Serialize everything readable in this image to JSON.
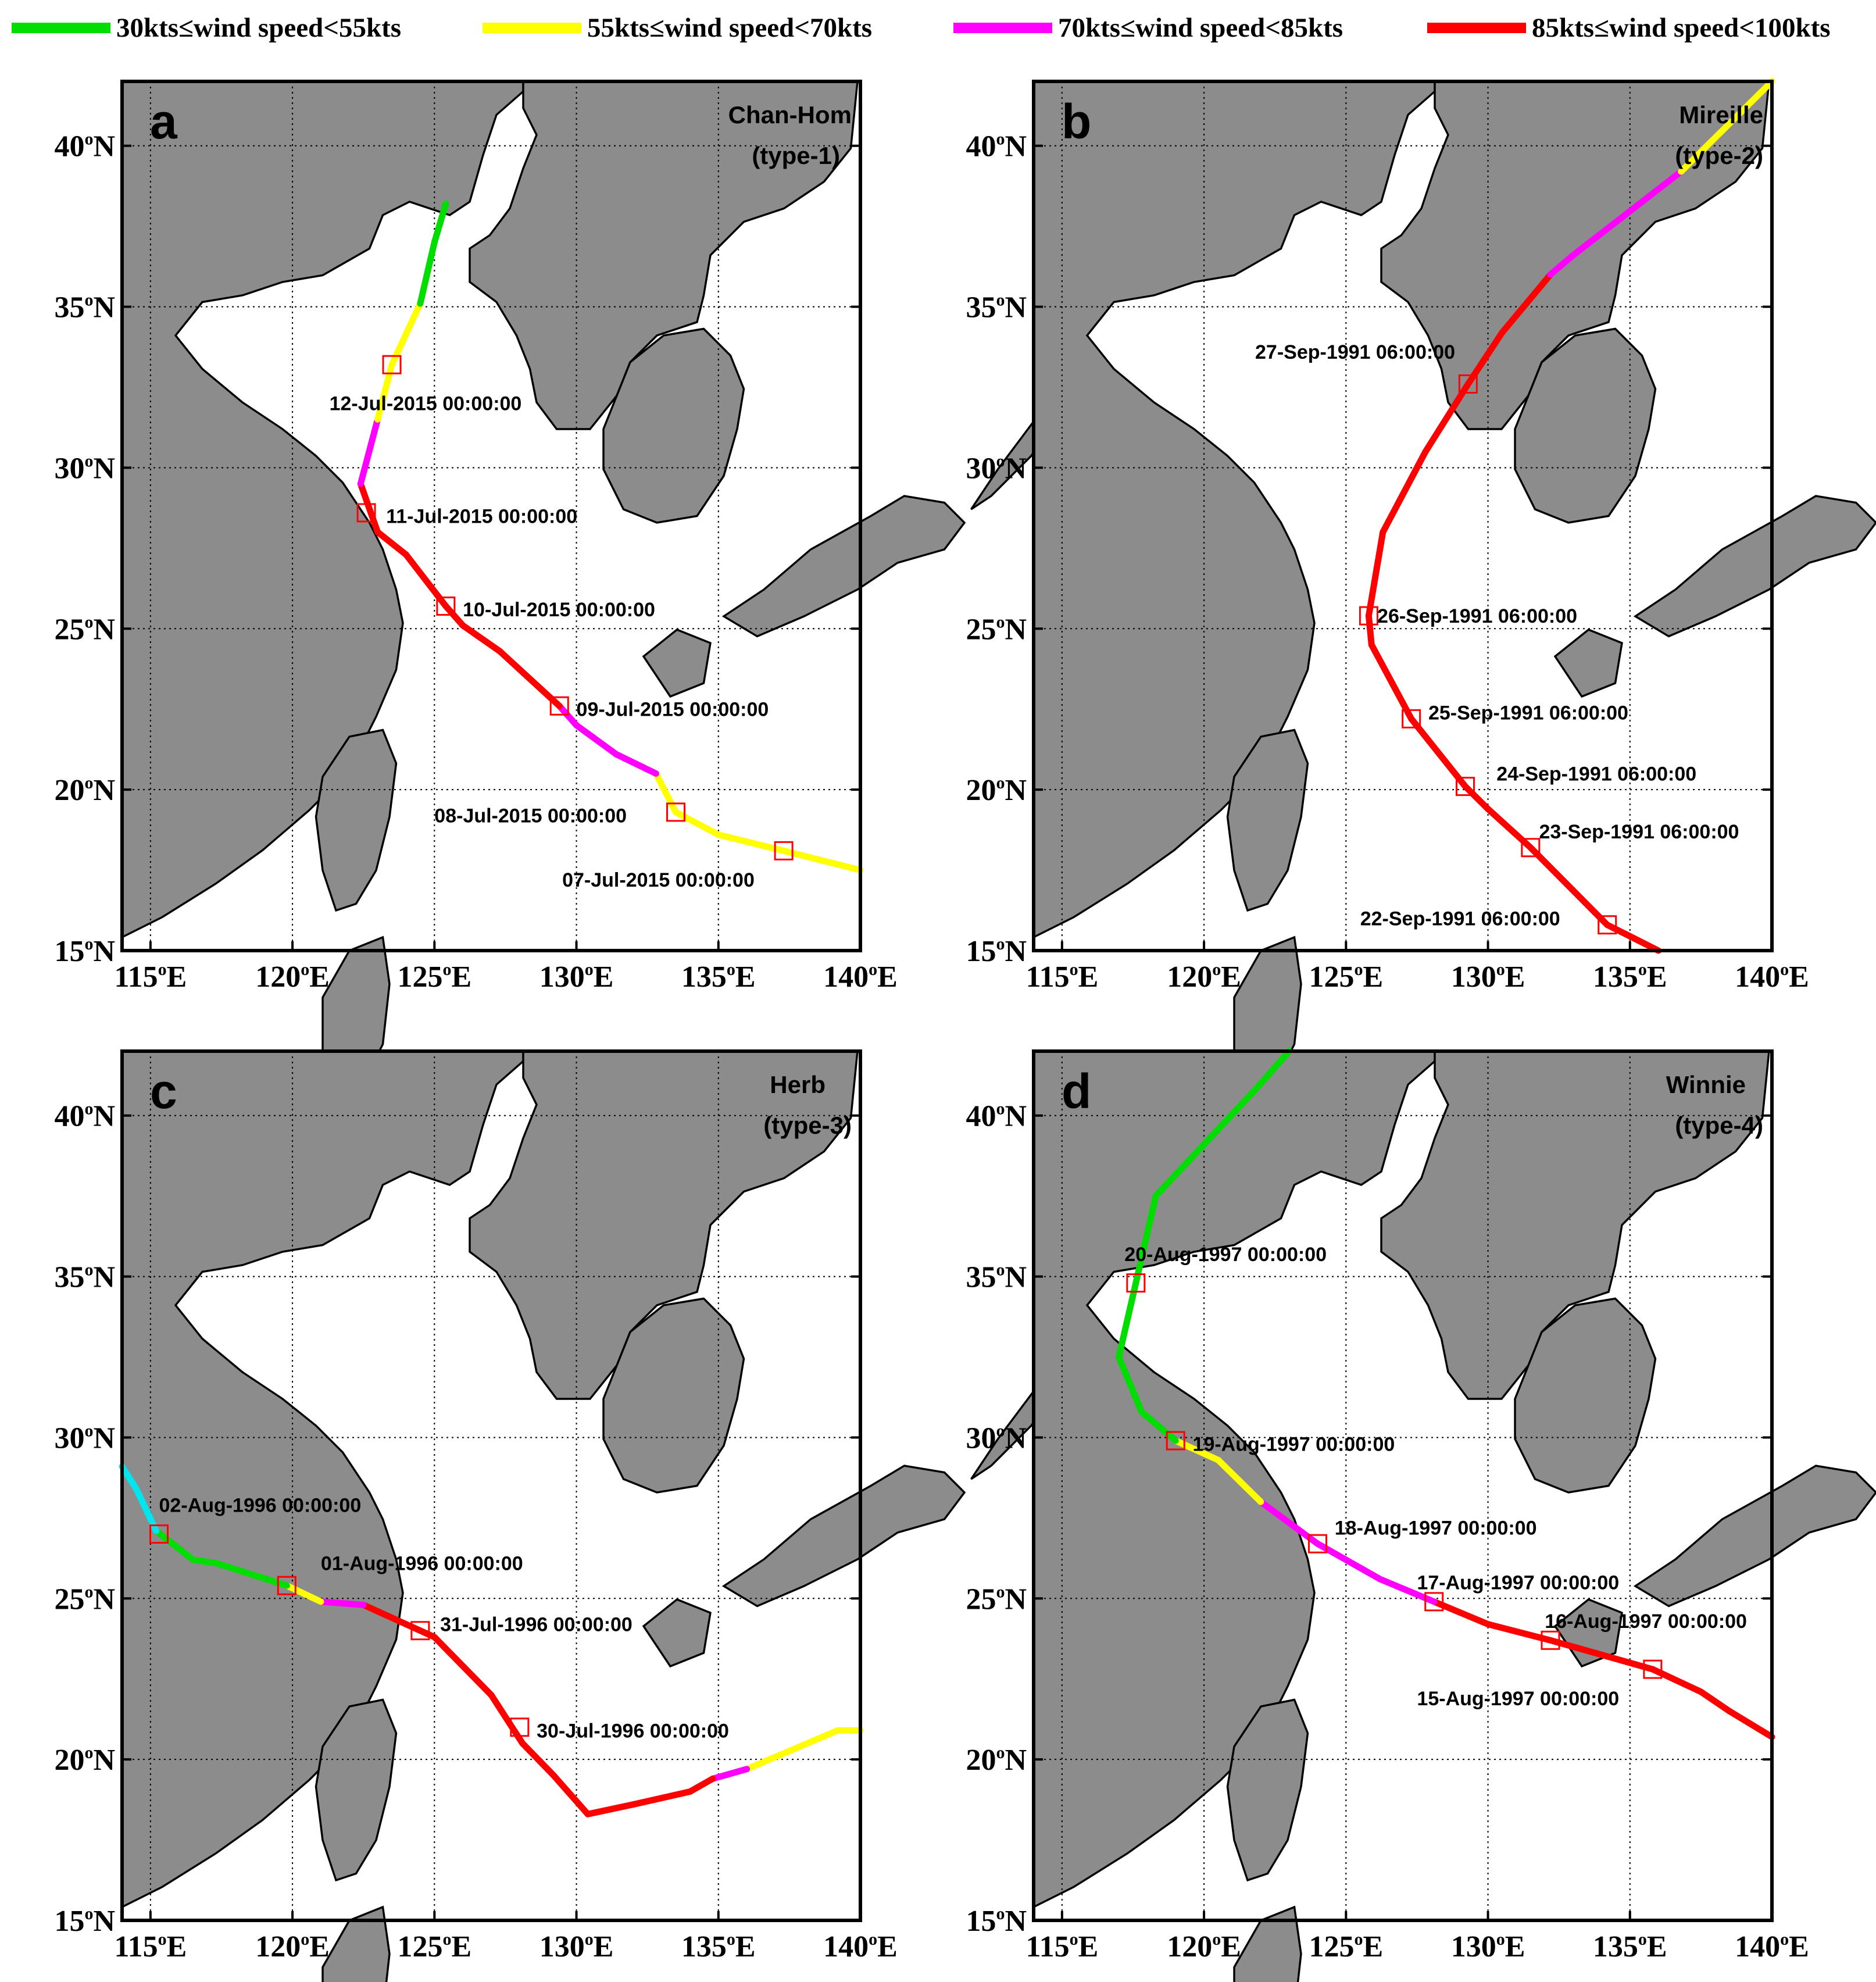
{
  "legend": {
    "items": [
      {
        "label": "30kts≤wind speed<55kts",
        "color": "#00dd00"
      },
      {
        "label": "55kts≤wind speed<70kts",
        "color": "#ffff00"
      },
      {
        "label": "70kts≤wind speed<85kts",
        "color": "#ff00ff"
      },
      {
        "label": "85kts≤wind speed<100kts",
        "color": "#ff0000"
      }
    ]
  },
  "axes": {
    "lat_labels": [
      "15",
      "20",
      "25",
      "30",
      "35",
      "40"
    ],
    "lat_suffix": "N",
    "lon_labels": [
      "115",
      "120",
      "125",
      "130",
      "135",
      "140"
    ],
    "lon_suffix": "E",
    "degree_symbol": "o",
    "lon_range": [
      114,
      140
    ],
    "lat_range": [
      15,
      42
    ]
  },
  "colors": {
    "land": "#8c8c8c",
    "sea": "#ffffff",
    "marker": "#ff0000",
    "low_wind": "#00e5ee"
  },
  "panels": [
    {
      "letter": "a",
      "name": "Chan-Hom",
      "type": "(type-1)",
      "track": [
        {
          "lon": 140.0,
          "lat": 17.5,
          "color": "#ffff00"
        },
        {
          "lon": 137.3,
          "lat": 18.1,
          "color": "#ffff00"
        },
        {
          "lon": 135.0,
          "lat": 18.6,
          "color": "#ffff00"
        },
        {
          "lon": 133.5,
          "lat": 19.3,
          "color": "#ffff00"
        },
        {
          "lon": 132.8,
          "lat": 20.5,
          "color": "#ffff00"
        },
        {
          "lon": 131.4,
          "lat": 21.1,
          "color": "#ff00ff"
        },
        {
          "lon": 130.0,
          "lat": 22.0,
          "color": "#ff00ff"
        },
        {
          "lon": 129.4,
          "lat": 22.6,
          "color": "#ff00ff"
        },
        {
          "lon": 127.3,
          "lat": 24.3,
          "color": "#ff0000"
        },
        {
          "lon": 126.0,
          "lat": 25.1,
          "color": "#ff0000"
        },
        {
          "lon": 125.4,
          "lat": 25.7,
          "color": "#ff0000"
        },
        {
          "lon": 124.0,
          "lat": 27.3,
          "color": "#ff0000"
        },
        {
          "lon": 123.0,
          "lat": 28.0,
          "color": "#ff0000"
        },
        {
          "lon": 122.4,
          "lat": 29.5,
          "color": "#ff0000"
        },
        {
          "lon": 123.0,
          "lat": 31.5,
          "color": "#ff00ff"
        },
        {
          "lon": 123.5,
          "lat": 33.2,
          "color": "#ffff00"
        },
        {
          "lon": 124.5,
          "lat": 35.1,
          "color": "#ffff00"
        },
        {
          "lon": 125.0,
          "lat": 37.0,
          "color": "#00dd00"
        },
        {
          "lon": 125.4,
          "lat": 38.2,
          "color": "#00dd00"
        }
      ],
      "markers": [
        {
          "lon": 137.3,
          "lat": 18.1,
          "label": "07-Jul-2015 00:00:00",
          "label_lon": 129.5,
          "label_lat": 17.2
        },
        {
          "lon": 133.5,
          "lat": 19.3,
          "label": "08-Jul-2015 00:00:00",
          "label_lon": 125.0,
          "label_lat": 19.2
        },
        {
          "lon": 129.4,
          "lat": 22.6,
          "label": "09-Jul-2015 00:00:00",
          "label_lon": 130.0,
          "label_lat": 22.5
        },
        {
          "lon": 125.4,
          "lat": 25.7,
          "label": "10-Jul-2015 00:00:00",
          "label_lon": 126.0,
          "label_lat": 25.6
        },
        {
          "lon": 122.6,
          "lat": 28.6,
          "label": "11-Jul-2015 00:00:00",
          "label_lon": 123.3,
          "label_lat": 28.5
        },
        {
          "lon": 123.5,
          "lat": 33.2,
          "label": "12-Jul-2015 00:00:00",
          "label_lon": 121.3,
          "label_lat": 32.0
        }
      ]
    },
    {
      "letter": "b",
      "name": "Mireille",
      "type": "(type-2)",
      "track": [
        {
          "lon": 136.0,
          "lat": 15.0,
          "color": "#ff0000"
        },
        {
          "lon": 134.2,
          "lat": 15.8,
          "color": "#ff0000"
        },
        {
          "lon": 131.5,
          "lat": 18.2,
          "color": "#ff0000"
        },
        {
          "lon": 130.0,
          "lat": 19.4,
          "color": "#ff0000"
        },
        {
          "lon": 129.2,
          "lat": 20.1,
          "color": "#ff0000"
        },
        {
          "lon": 127.3,
          "lat": 22.2,
          "color": "#ff0000"
        },
        {
          "lon": 125.9,
          "lat": 24.5,
          "color": "#ff0000"
        },
        {
          "lon": 125.8,
          "lat": 25.4,
          "color": "#ff0000"
        },
        {
          "lon": 126.3,
          "lat": 28.0,
          "color": "#ff0000"
        },
        {
          "lon": 127.8,
          "lat": 30.5,
          "color": "#ff0000"
        },
        {
          "lon": 129.3,
          "lat": 32.6,
          "color": "#ff0000"
        },
        {
          "lon": 130.5,
          "lat": 34.2,
          "color": "#ff0000"
        },
        {
          "lon": 132.2,
          "lat": 36.0,
          "color": "#ff0000"
        },
        {
          "lon": 133.0,
          "lat": 36.6,
          "color": "#ff00ff"
        },
        {
          "lon": 136.8,
          "lat": 39.2,
          "color": "#ff00ff"
        },
        {
          "lon": 140.0,
          "lat": 42.0,
          "color": "#ffff00"
        }
      ],
      "markers": [
        {
          "lon": 134.2,
          "lat": 15.8,
          "label": "22-Sep-1991 06:00:00",
          "label_lon": 125.5,
          "label_lat": 16.0
        },
        {
          "lon": 131.5,
          "lat": 18.2,
          "label": "23-Sep-1991 06:00:00",
          "label_lon": 131.8,
          "label_lat": 18.7
        },
        {
          "lon": 129.2,
          "lat": 20.1,
          "label": "24-Sep-1991 06:00:00",
          "label_lon": 130.3,
          "label_lat": 20.5
        },
        {
          "lon": 127.3,
          "lat": 22.2,
          "label": "25-Sep-1991 06:00:00",
          "label_lon": 127.9,
          "label_lat": 22.4
        },
        {
          "lon": 125.8,
          "lat": 25.4,
          "label": "26-Sep-1991 06:00:00",
          "label_lon": 126.1,
          "label_lat": 25.4
        },
        {
          "lon": 129.3,
          "lat": 32.6,
          "label": "27-Sep-1991 06:00:00",
          "label_lon": 121.8,
          "label_lat": 33.6
        }
      ]
    },
    {
      "letter": "c",
      "name": "Herb",
      "type": "(type-3)",
      "track": [
        {
          "lon": 140.0,
          "lat": 20.9,
          "color": "#00dd00"
        },
        {
          "lon": 139.2,
          "lat": 20.9,
          "color": "#ffff00"
        },
        {
          "lon": 136.0,
          "lat": 19.7,
          "color": "#ffff00"
        },
        {
          "lon": 134.8,
          "lat": 19.4,
          "color": "#ff00ff"
        },
        {
          "lon": 134.0,
          "lat": 19.0,
          "color": "#ff0000"
        },
        {
          "lon": 132.0,
          "lat": 18.6,
          "color": "#ff0000"
        },
        {
          "lon": 130.4,
          "lat": 18.3,
          "color": "#ff0000"
        },
        {
          "lon": 129.2,
          "lat": 19.5,
          "color": "#ff0000"
        },
        {
          "lon": 128.1,
          "lat": 20.5,
          "color": "#ff0000"
        },
        {
          "lon": 127.0,
          "lat": 22.0,
          "color": "#ff0000"
        },
        {
          "lon": 125.0,
          "lat": 23.8,
          "color": "#ff0000"
        },
        {
          "lon": 122.5,
          "lat": 24.8,
          "color": "#ff0000"
        },
        {
          "lon": 121.0,
          "lat": 24.9,
          "color": "#ff00ff"
        },
        {
          "lon": 119.8,
          "lat": 25.4,
          "color": "#ffff00"
        },
        {
          "lon": 117.3,
          "lat": 26.1,
          "color": "#00dd00"
        },
        {
          "lon": 116.5,
          "lat": 26.2,
          "color": "#00dd00"
        },
        {
          "lon": 115.2,
          "lat": 27.1,
          "color": "#00dd00"
        },
        {
          "lon": 114.5,
          "lat": 28.4,
          "color": "#00e5ee"
        },
        {
          "lon": 114.0,
          "lat": 29.1,
          "color": "#00e5ee"
        }
      ],
      "markers": [
        {
          "lon": 128.0,
          "lat": 21.0,
          "label": "30-Jul-1996 00:00:00",
          "label_lon": 128.6,
          "label_lat": 20.9
        },
        {
          "lon": 124.5,
          "lat": 24.0,
          "label": "31-Jul-1996 00:00:00",
          "label_lon": 125.2,
          "label_lat": 24.2
        },
        {
          "lon": 119.8,
          "lat": 25.4,
          "label": "01-Aug-1996 00:00:00",
          "label_lon": 121.0,
          "label_lat": 26.1
        },
        {
          "lon": 115.3,
          "lat": 27.0,
          "label": "02-Aug-1996 00:00:00",
          "label_lon": 115.3,
          "label_lat": 27.9
        }
      ]
    },
    {
      "letter": "d",
      "name": "Winnie",
      "type": "(type-4)",
      "track": [
        {
          "lon": 140.0,
          "lat": 20.7,
          "color": "#ff0000"
        },
        {
          "lon": 138.5,
          "lat": 21.5,
          "color": "#ff0000"
        },
        {
          "lon": 137.5,
          "lat": 22.1,
          "color": "#ff0000"
        },
        {
          "lon": 135.8,
          "lat": 22.8,
          "color": "#ff0000"
        },
        {
          "lon": 132.2,
          "lat": 23.7,
          "color": "#ff0000"
        },
        {
          "lon": 130.0,
          "lat": 24.2,
          "color": "#ff0000"
        },
        {
          "lon": 128.1,
          "lat": 24.9,
          "color": "#ff0000"
        },
        {
          "lon": 126.2,
          "lat": 25.6,
          "color": "#ff00ff"
        },
        {
          "lon": 124.0,
          "lat": 26.7,
          "color": "#ff00ff"
        },
        {
          "lon": 122.0,
          "lat": 28.0,
          "color": "#ff00ff"
        },
        {
          "lon": 120.5,
          "lat": 29.3,
          "color": "#ffff00"
        },
        {
          "lon": 119.0,
          "lat": 29.9,
          "color": "#ffff00"
        },
        {
          "lon": 117.8,
          "lat": 30.8,
          "color": "#00dd00"
        },
        {
          "lon": 117.0,
          "lat": 32.5,
          "color": "#00dd00"
        },
        {
          "lon": 117.6,
          "lat": 34.8,
          "color": "#00dd00"
        },
        {
          "lon": 118.3,
          "lat": 37.5,
          "color": "#00dd00"
        },
        {
          "lon": 121.8,
          "lat": 40.8,
          "color": "#00dd00"
        },
        {
          "lon": 123.0,
          "lat": 42.0,
          "color": "#00dd00"
        }
      ],
      "markers": [
        {
          "lon": 135.8,
          "lat": 22.8,
          "label": "15-Aug-1997 00:00:00",
          "label_lon": 127.5,
          "label_lat": 21.9
        },
        {
          "lon": 132.2,
          "lat": 23.7,
          "label": "16-Aug-1997 00:00:00",
          "label_lon": 132.0,
          "label_lat": 24.3
        },
        {
          "lon": 128.1,
          "lat": 24.9,
          "label": "17-Aug-1997 00:00:00",
          "label_lon": 127.5,
          "label_lat": 25.5
        },
        {
          "lon": 124.0,
          "lat": 26.7,
          "label": "18-Aug-1997 00:00:00",
          "label_lon": 124.6,
          "label_lat": 27.2
        },
        {
          "lon": 119.0,
          "lat": 29.9,
          "label": "19-Aug-1997 00:00:00",
          "label_lon": 119.6,
          "label_lat": 29.8
        },
        {
          "lon": 117.6,
          "lat": 34.8,
          "label": "20-Aug-1997 00:00:00",
          "label_lon": 117.2,
          "label_lat": 35.7
        }
      ]
    }
  ]
}
